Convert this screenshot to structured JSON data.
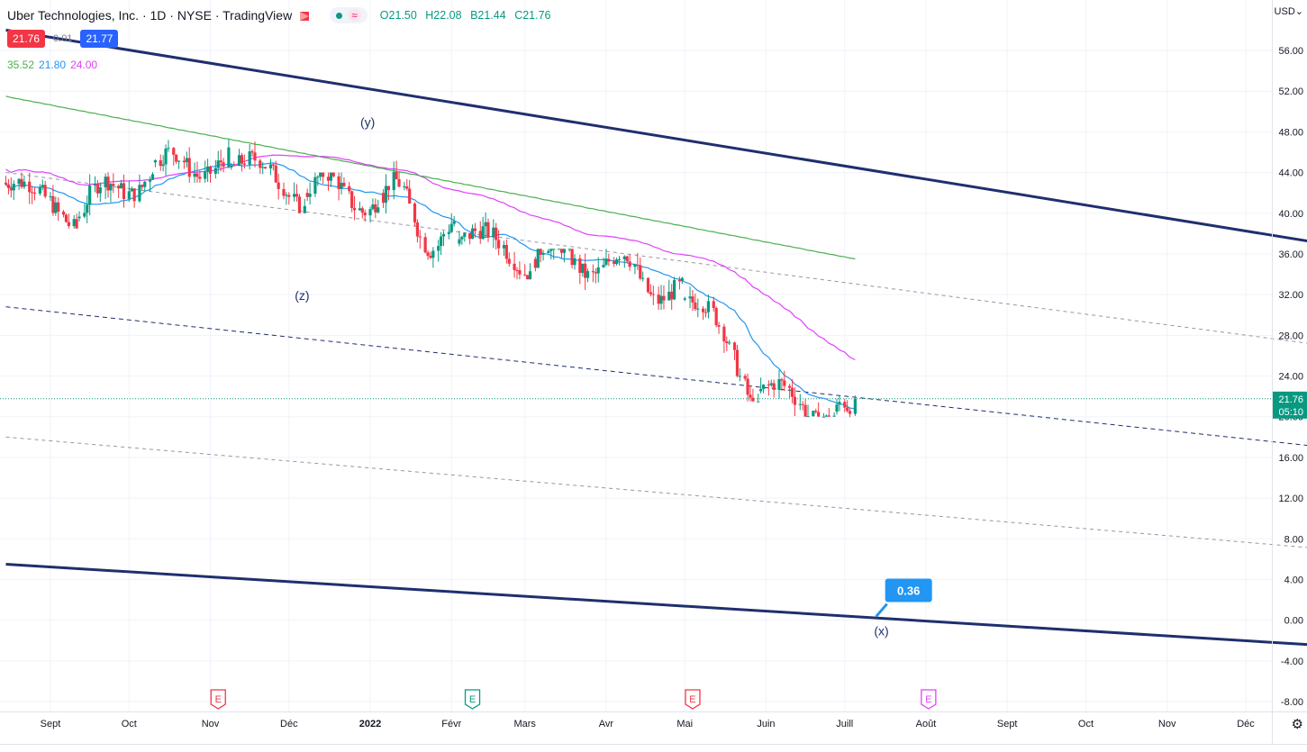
{
  "header": {
    "symbol_title": "Uber Technologies, Inc. · 1D · NYSE · TradingView",
    "ohlc": {
      "o": "O21.50",
      "h": "H22.08",
      "b": "B21.44",
      "c": "C21.76"
    },
    "bid": "21.76",
    "spread": "0.01",
    "ask": "21.77",
    "ma_values": [
      {
        "text": "35.52",
        "color": "#4caf50"
      },
      {
        "text": "21.80",
        "color": "#2196f3"
      },
      {
        "text": "24.00",
        "color": "#e040fb"
      }
    ],
    "currency_button": "USD"
  },
  "price_axis": {
    "labels": [
      "56.00",
      "52.00",
      "48.00",
      "44.00",
      "40.00",
      "36.00",
      "32.00",
      "28.00",
      "24.00",
      "20.00",
      "16.00",
      "12.00",
      "8.00",
      "4.00",
      "0.00",
      "-4.00",
      "-8.00"
    ],
    "last_price": "21.76",
    "countdown": "05:10"
  },
  "time_axis": {
    "labels": [
      {
        "text": "Sept",
        "bold": false
      },
      {
        "text": "Oct",
        "bold": false
      },
      {
        "text": "Nov",
        "bold": false
      },
      {
        "text": "Déc",
        "bold": false
      },
      {
        "text": "2022",
        "bold": true
      },
      {
        "text": "Févr",
        "bold": false
      },
      {
        "text": "Mars",
        "bold": false
      },
      {
        "text": "Avr",
        "bold": false
      },
      {
        "text": "Mai",
        "bold": false
      },
      {
        "text": "Juin",
        "bold": false
      },
      {
        "text": "Juill",
        "bold": false
      },
      {
        "text": "Août",
        "bold": false
      },
      {
        "text": "Sept",
        "bold": false
      },
      {
        "text": "Oct",
        "bold": false
      },
      {
        "text": "Nov",
        "bold": false
      },
      {
        "text": "Déc",
        "bold": false
      }
    ]
  },
  "annotations": {
    "wave_labels": [
      "(y)",
      "(z)",
      "(x)"
    ],
    "target_callout": "0.36",
    "earnings_markers": [
      "E",
      "E",
      "E",
      "E"
    ]
  },
  "colors": {
    "up": "#089981",
    "down": "#f23645",
    "channel": "#1f2f6e",
    "ma200": "#4caf50",
    "ma20": "#2196f3",
    "ma50": "#e040fb",
    "callout": "#2196f3"
  },
  "chart_data": {
    "type": "candlestick",
    "title": "Uber Technologies, Inc. · 1D · NYSE",
    "x_range": [
      "2021-08-15",
      "2022-12-31"
    ],
    "ylim": [
      -9,
      59
    ],
    "grid": true,
    "candles_monthly_approx": [
      {
        "month": "Aug 2021",
        "open": 43.0,
        "high": 44.0,
        "low": 38.5,
        "close": 39.5
      },
      {
        "month": "Sep 2021",
        "open": 39.5,
        "high": 47.5,
        "low": 38.8,
        "close": 45.0
      },
      {
        "month": "Oct 2021",
        "open": 45.0,
        "high": 48.5,
        "low": 43.0,
        "close": 44.5
      },
      {
        "month": "Nov 2021",
        "open": 44.5,
        "high": 48.3,
        "low": 40.0,
        "close": 42.0
      },
      {
        "month": "Dec 2021",
        "open": 42.0,
        "high": 44.0,
        "low": 35.0,
        "close": 42.0
      },
      {
        "month": "Jan 2022",
        "open": 42.0,
        "high": 45.8,
        "low": 34.5,
        "close": 37.0
      },
      {
        "month": "Feb 2022",
        "open": 37.0,
        "high": 42.6,
        "low": 33.5,
        "close": 35.5
      },
      {
        "month": "Mar 2022",
        "open": 35.5,
        "high": 36.5,
        "low": 28.5,
        "close": 35.5
      },
      {
        "month": "Apr 2022",
        "open": 35.5,
        "high": 37.5,
        "low": 30.5,
        "close": 31.5
      },
      {
        "month": "May 2022",
        "open": 31.5,
        "high": 33.0,
        "low": 21.5,
        "close": 22.5
      },
      {
        "month": "Jun 2022",
        "open": 22.5,
        "high": 26.5,
        "low": 20.0,
        "close": 20.5
      },
      {
        "month": "Jul 2022",
        "open": 20.5,
        "high": 22.08,
        "low": 19.8,
        "close": 21.76
      }
    ],
    "moving_averages": [
      {
        "value": 35.52,
        "color": "#4caf50"
      },
      {
        "value": 21.8,
        "color": "#2196f3"
      },
      {
        "value": 24.0,
        "color": "#e040fb"
      }
    ],
    "channel_lines": [
      {
        "style": "solid",
        "from": [
          "2021-08-15",
          58.0
        ],
        "to": [
          "2022-12-31",
          37.0
        ]
      },
      {
        "style": "solid",
        "from": [
          "2021-08-15",
          5.5
        ],
        "to": [
          "2022-12-31",
          -2.5
        ]
      },
      {
        "style": "dashed",
        "from": [
          "2021-08-15",
          30.8
        ],
        "to": [
          "2022-12-31",
          17.0
        ]
      },
      {
        "style": "dotted-gray",
        "from": [
          "2021-08-15",
          44.0
        ],
        "to": [
          "2022-12-31",
          27.0
        ]
      },
      {
        "style": "dotted-gray",
        "from": [
          "2021-08-15",
          18.0
        ],
        "to": [
          "2022-12-31",
          7.0
        ]
      }
    ],
    "last_close": 21.76
  }
}
